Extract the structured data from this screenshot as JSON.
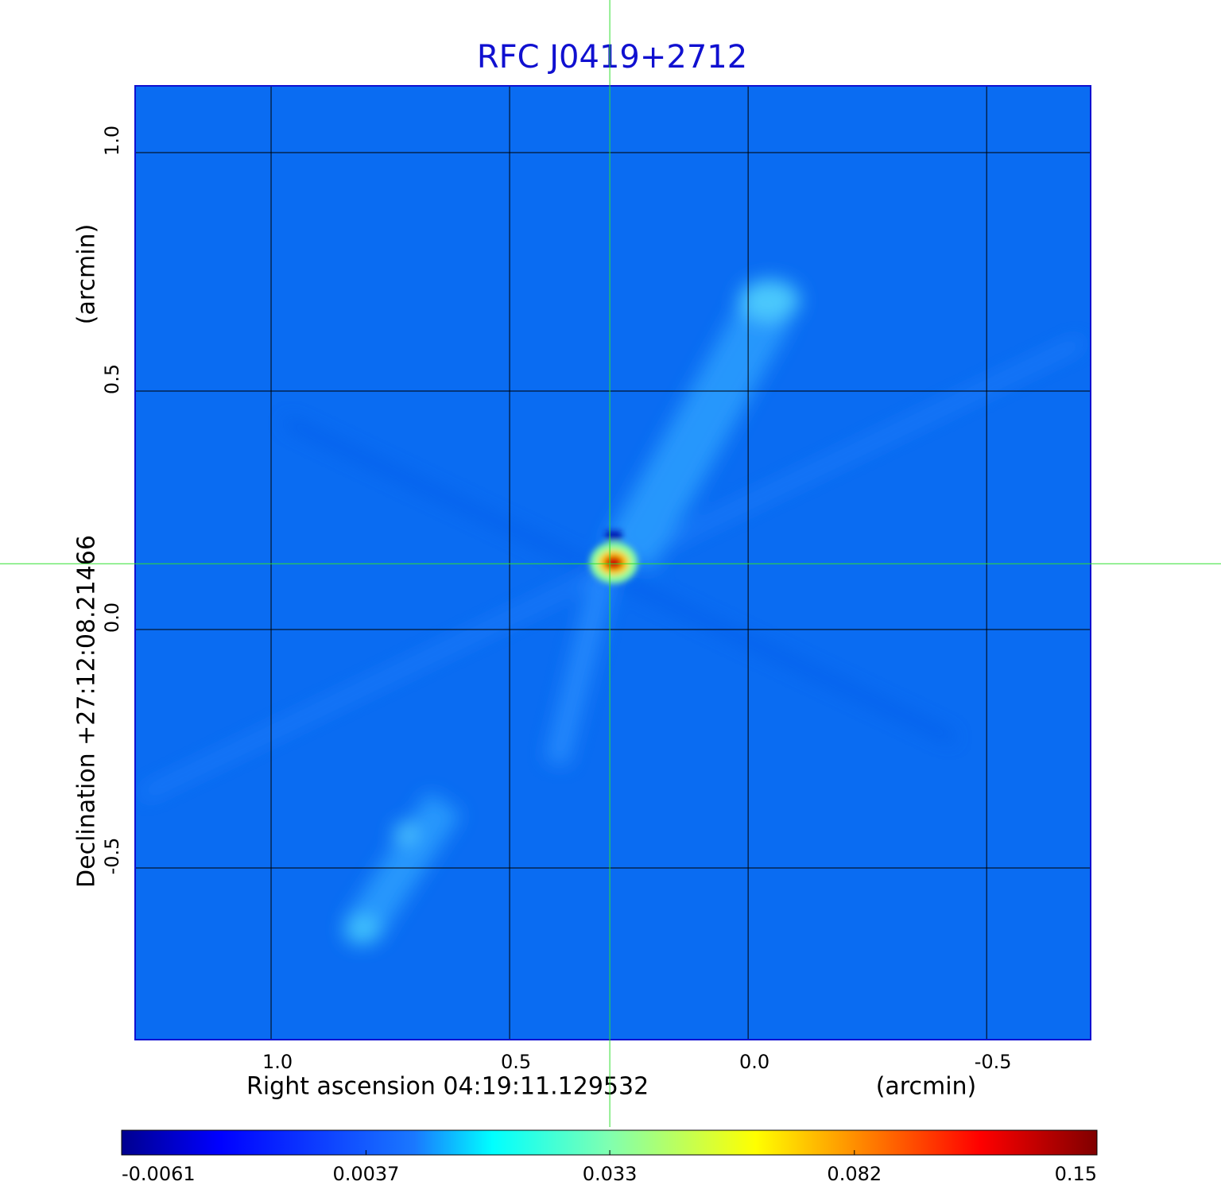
{
  "chart_data": {
    "type": "image",
    "title": "RFC J0419+2712",
    "x_label": "Right ascension  04:19:11.129532",
    "x_unit": "(arcmin)",
    "y_label": "Declination  +27:12:08.21466",
    "y_unit": "(arcmin)",
    "xlim": [
      1.285,
      -0.718
    ],
    "ylim": [
      -0.86,
      1.14
    ],
    "xticks": [
      {
        "value": 1,
        "label": "1.0"
      },
      0.5,
      {
        "value": 0,
        "label": "0.0"
      },
      -0.5
    ],
    "yticks": [
      {
        "value": 1,
        "label": "1.0"
      },
      0.5,
      {
        "value": 0,
        "label": "0.0"
      },
      -0.5
    ],
    "grid": true,
    "crosshair": {
      "x": 0.29,
      "y": 0.138
    },
    "colorbar": {
      "lim": [
        -0.0061,
        0.15
      ],
      "scale": "sqrt",
      "ticks": [
        -0.0061,
        0.0037,
        0.033,
        0.082,
        0.15
      ]
    }
  }
}
